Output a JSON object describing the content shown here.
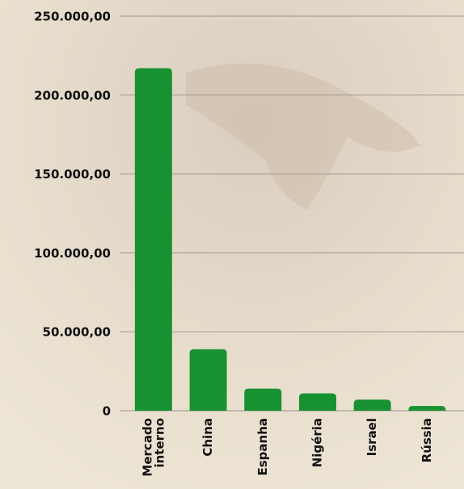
{
  "chart_data": {
    "type": "bar",
    "categories": [
      "Mercado interno",
      "China",
      "Espanha",
      "Nigéria",
      "Israel",
      "Rússia"
    ],
    "values": [
      217000,
      39000,
      14000,
      11000,
      7000,
      3000
    ],
    "color": "#189230",
    "ylim": [
      0,
      250000
    ],
    "yticks": [
      0,
      {
        "value": 50000,
        "label": "50.000,00"
      },
      {
        "value": 100000,
        "label": "100.000,00"
      },
      {
        "value": 150000,
        "label": "150.000,00"
      },
      {
        "value": 200000,
        "label": "200.000,00"
      },
      {
        "value": 250000,
        "label": "250.000,00"
      }
    ],
    "grid": true
  }
}
